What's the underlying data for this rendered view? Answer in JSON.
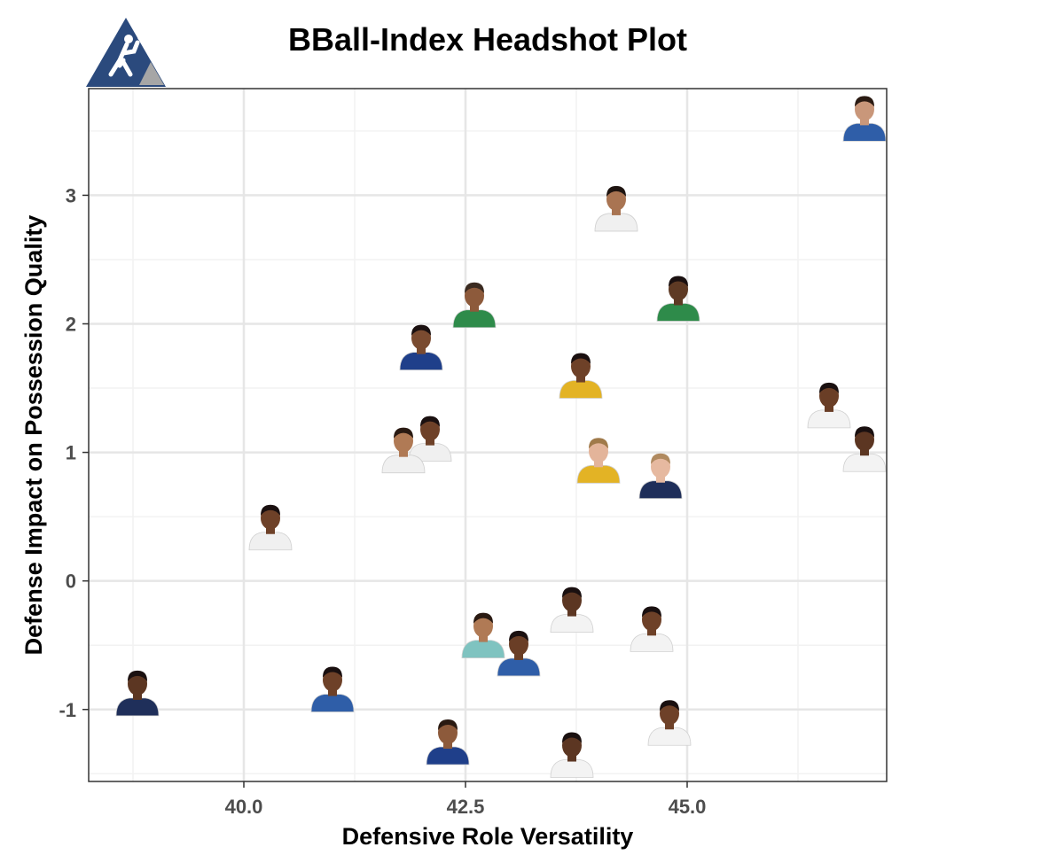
{
  "title": "BBall-Index Headshot Plot",
  "logo": {
    "icon": "basketball-player-triangle-logo",
    "color": "#2b4a7d",
    "accent": "#a6a6a6"
  },
  "chart_data": {
    "type": "scatter",
    "title": "BBall-Index Headshot Plot",
    "xlabel": "Defensive Role Versatility",
    "ylabel": "Defense Impact on Possession Quality",
    "xlim": [
      38.25,
      47.25
    ],
    "ylim": [
      -1.56,
      3.83
    ],
    "x_ticks": [
      40.0,
      42.5,
      45.0
    ],
    "x_tick_labels": [
      "40.0",
      "42.5",
      "45.0"
    ],
    "y_ticks": [
      -1,
      0,
      1,
      2,
      3
    ],
    "y_tick_labels": [
      "-1",
      "0",
      "1",
      "2",
      "3"
    ],
    "grid": true,
    "marker": "player headshot",
    "points": [
      {
        "x": 47.0,
        "y": 3.6,
        "jersey": "#2f5ea8",
        "skin": "#c9977a",
        "hair": "#2a1a12"
      },
      {
        "x": 44.2,
        "y": 2.9,
        "jersey": "#f0f0f0",
        "skin": "#a97452",
        "hair": "#1e1410"
      },
      {
        "x": 42.6,
        "y": 2.15,
        "jersey": "#2e8b4a",
        "skin": "#8d5a3b",
        "hair": "#3a2a20"
      },
      {
        "x": 44.9,
        "y": 2.2,
        "jersey": "#2e8b4a",
        "skin": "#5e3a24",
        "hair": "#1a1010"
      },
      {
        "x": 42.0,
        "y": 1.82,
        "jersey": "#1f3f8a",
        "skin": "#7a4b30",
        "hair": "#1a1010"
      },
      {
        "x": 43.8,
        "y": 1.6,
        "jersey": "#e3b325",
        "skin": "#6e4128",
        "hair": "#1a1010"
      },
      {
        "x": 46.6,
        "y": 1.37,
        "jersey": "#f3f3f3",
        "skin": "#6a3e26",
        "hair": "#1a1010"
      },
      {
        "x": 47.0,
        "y": 1.03,
        "jersey": "#f3f3f3",
        "skin": "#5c3622",
        "hair": "#1a1010"
      },
      {
        "x": 42.1,
        "y": 1.11,
        "jersey": "#f0f0f0",
        "skin": "#6e4128",
        "hair": "#1a1010"
      },
      {
        "x": 41.8,
        "y": 1.02,
        "jersey": "#f0f0f0",
        "skin": "#b07a55",
        "hair": "#2a1a12"
      },
      {
        "x": 44.0,
        "y": 0.94,
        "jersey": "#e3b325",
        "skin": "#e3b49a",
        "hair": "#a07a4a"
      },
      {
        "x": 44.7,
        "y": 0.82,
        "jersey": "#1f2f5a",
        "skin": "#e6b9a0",
        "hair": "#b08a60"
      },
      {
        "x": 40.3,
        "y": 0.42,
        "jersey": "#f0f0f0",
        "skin": "#6e4128",
        "hair": "#1a1010"
      },
      {
        "x": 43.7,
        "y": -0.22,
        "jersey": "#f3f3f3",
        "skin": "#5c3622",
        "hair": "#1a1010"
      },
      {
        "x": 42.7,
        "y": -0.42,
        "jersey": "#7fc3c0",
        "skin": "#b07a55",
        "hair": "#2a1a12"
      },
      {
        "x": 44.6,
        "y": -0.37,
        "jersey": "#f3f3f3",
        "skin": "#6e4128",
        "hair": "#1a1010"
      },
      {
        "x": 43.1,
        "y": -0.56,
        "jersey": "#2f5ea8",
        "skin": "#6a3e26",
        "hair": "#1a1010"
      },
      {
        "x": 38.8,
        "y": -0.87,
        "jersey": "#1f2f5a",
        "skin": "#5c3622",
        "hair": "#1a1010"
      },
      {
        "x": 41.0,
        "y": -0.84,
        "jersey": "#2f5ea8",
        "skin": "#6e4128",
        "hair": "#1a1010"
      },
      {
        "x": 44.8,
        "y": -1.1,
        "jersey": "#f3f3f3",
        "skin": "#6e4128",
        "hair": "#1a1010"
      },
      {
        "x": 42.3,
        "y": -1.25,
        "jersey": "#1f3f8a",
        "skin": "#8d5a3b",
        "hair": "#2a1a12"
      },
      {
        "x": 43.7,
        "y": -1.35,
        "jersey": "#f3f3f3",
        "skin": "#5c3622",
        "hair": "#1a1010"
      }
    ]
  },
  "colors": {
    "grid_major": "#e6e6e6",
    "grid_minor": "#f2f2f2",
    "border": "#333333"
  }
}
